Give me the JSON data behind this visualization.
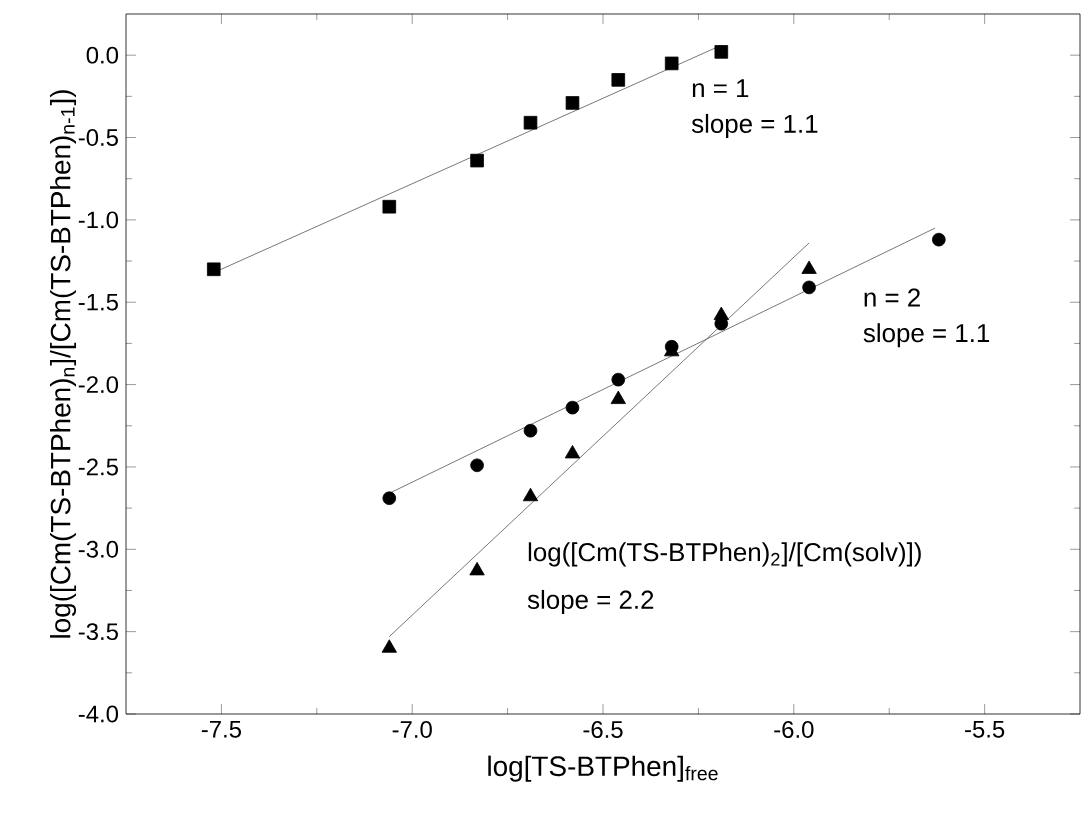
{
  "chart_data": {
    "type": "scatter",
    "xlabel": "log[TS-BTPhen]$_{free}$",
    "ylabel": "log([Cm(TS-BTPhen)$_{n}$]/[Cm(TS-BTPhen)$_{n-1}$])",
    "xlim": [
      -7.75,
      -5.25
    ],
    "ylim": [
      -4.0,
      0.25
    ],
    "xticks": [
      {
        "value": -7.5,
        "label": "-7.5"
      },
      {
        "value": -7.0,
        "label": "-7.0"
      },
      {
        "value": -6.5,
        "label": "-6.5"
      },
      {
        "value": -6.0,
        "label": "-6.0"
      },
      {
        "value": -5.5,
        "label": "-5.5"
      }
    ],
    "yticks": [
      {
        "value": -4.0,
        "label": "-4.0"
      },
      {
        "value": -3.5,
        "label": "-3.5"
      },
      {
        "value": -3.0,
        "label": "-3.0"
      },
      {
        "value": -2.5,
        "label": "-2.5"
      },
      {
        "value": -2.0,
        "label": "-2.0"
      },
      {
        "value": -1.5,
        "label": "-1.5"
      },
      {
        "value": -1.0,
        "label": "-1.0"
      },
      {
        "value": -0.5,
        "label": "-0.5"
      },
      {
        "value": 0.0,
        "label": "0.0"
      }
    ],
    "series": [
      {
        "marker": "square",
        "color": "#000000",
        "x": [
          -7.52,
          -7.06,
          -6.83,
          -6.69,
          -6.58,
          -6.46,
          -6.32,
          -6.19
        ],
        "values": [
          -1.3,
          -0.92,
          -0.64,
          -0.41,
          -0.29,
          -0.15,
          -0.05,
          0.02
        ]
      },
      {
        "marker": "circle",
        "color": "#000000",
        "x": [
          -7.06,
          -6.83,
          -6.69,
          -6.58,
          -6.46,
          -6.32,
          -6.19,
          -5.96,
          -5.62
        ],
        "values": [
          -2.69,
          -2.49,
          -2.28,
          -2.14,
          -1.97,
          -1.77,
          -1.63,
          -1.41,
          -1.12
        ]
      },
      {
        "marker": "triangle",
        "color": "#000000",
        "x": [
          -7.06,
          -6.83,
          -6.69,
          -6.58,
          -6.46,
          -6.32,
          -6.19,
          -5.96
        ],
        "values": [
          -3.6,
          -3.13,
          -2.68,
          -2.42,
          -2.09,
          -1.8,
          -1.58,
          -1.3
        ]
      },
      {
        "type": "line",
        "marker": "none",
        "color": "#555555",
        "x": [
          -7.52,
          -6.19
        ],
        "values": [
          -1.32,
          0.06
        ]
      },
      {
        "type": "line",
        "marker": "none",
        "color": "#555555",
        "x": [
          -7.06,
          -5.63
        ],
        "values": [
          -2.66,
          -1.05
        ]
      },
      {
        "type": "line",
        "marker": "none",
        "color": "#555555",
        "x": [
          -7.06,
          -5.96
        ],
        "values": [
          -3.53,
          -1.14
        ]
      }
    ],
    "annotations": [
      "n = 1",
      "slope = 1.1",
      "n = 2",
      "slope = 1.1",
      "log([Cm(TS-BTPhen)$_{2}$]/[Cm(solv)])",
      "slope = 2.2"
    ]
  }
}
